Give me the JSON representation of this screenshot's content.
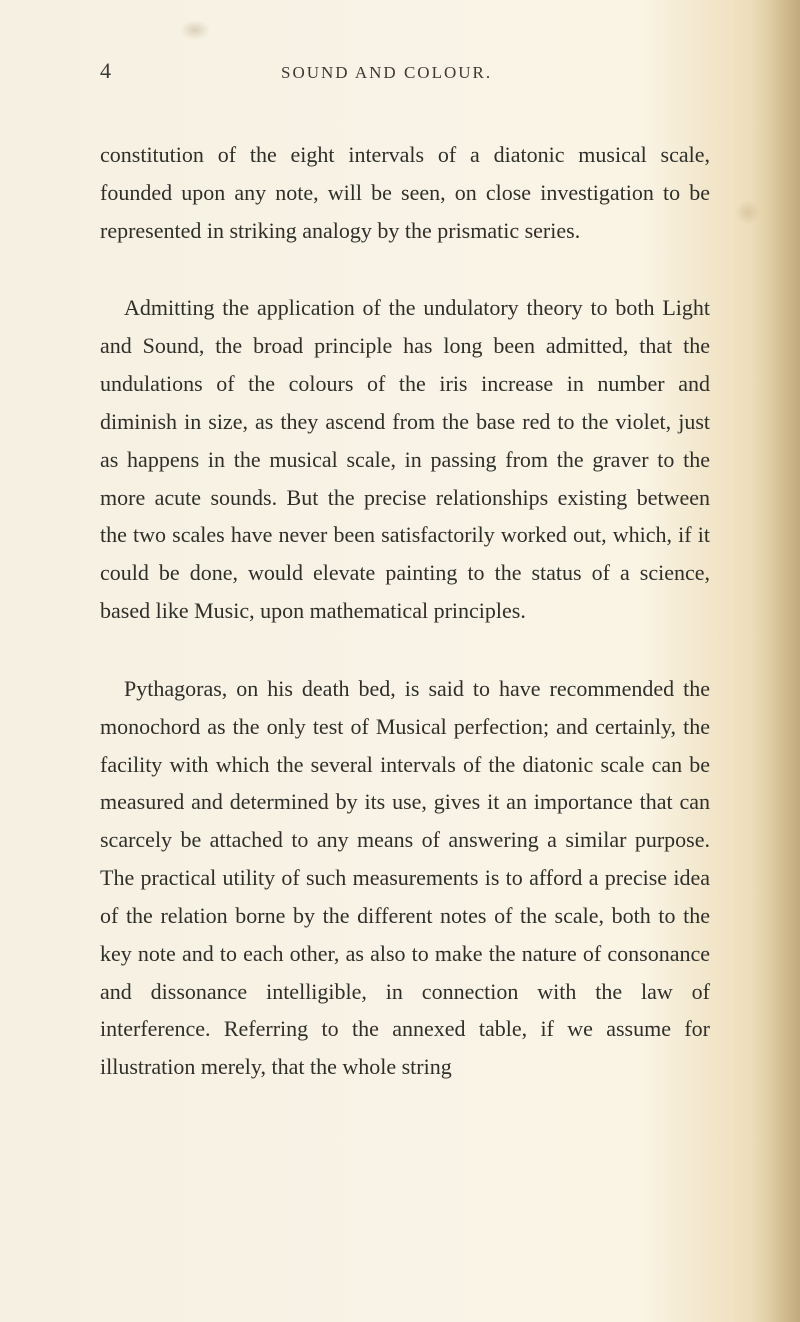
{
  "page": {
    "number": "4",
    "running_head": "SOUND AND COLOUR.",
    "background_color": "#f5f0e1",
    "text_color": "#2a2a28",
    "font_family": "Georgia, Times New Roman, serif",
    "body_fontsize": 22,
    "line_height": 1.72,
    "paragraphs": [
      {
        "text": "constitution of the eight intervals of a diatonic musical scale, founded upon any note, will be seen, on close investigation to be represented in striking analogy by the prismatic series.",
        "indented": false
      },
      {
        "text": "Admitting the application of the undulatory theory to both Light and Sound, the broad principle has long been admitted, that the undulations of the colours of the iris increase in number and diminish in size, as they ascend from the base red to the violet, just as happens in the musical scale, in passing from the graver to the more acute sounds. But the precise relationships existing between the two scales have never been satisfactorily worked out, which, if it could be done, would elevate painting to the status of a science, based like Music, upon mathematical principles.",
        "indented": true
      },
      {
        "text": "Pythagoras, on his death bed, is said to have recommended the monochord as the only test of Musical perfection; and certainly, the facility with which the several intervals of the diatonic scale can be measured and determined by its use, gives it an importance that can scarcely be attached to any means of answering a similar purpose. The practical utility of such measurements is to afford a precise idea of the relation borne by the different notes of the scale, both to the key note and to each other, as also to make the nature of consonance and dissonance intelligible, in connection with the law of interference. Referring to the annexed table, if we assume for illustration merely, that the whole string",
        "indented": true
      }
    ]
  }
}
